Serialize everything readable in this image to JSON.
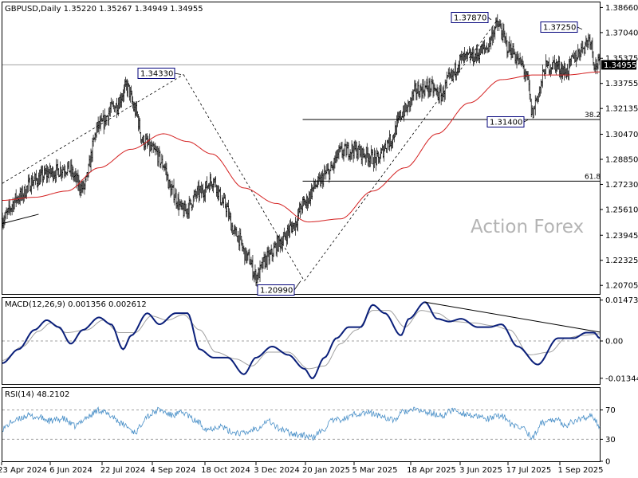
{
  "header": {
    "price_title": "GBPUSD,Daily  1.35220 1.35267 1.34949 1.34955",
    "macd_title": "MACD(12,26,9) 0.001356 0.002612",
    "rsi_title": "RSI(14) 48.2102"
  },
  "watermark": "Action Forex",
  "colors": {
    "price": "#000000",
    "ma": "#d42020",
    "macd": "#0a1f7a",
    "signal": "#a0a0a0",
    "rsi": "#4a90c8",
    "label_border": "#00007a"
  },
  "chart_data": [
    {
      "type": "line",
      "name": "GBPUSD price",
      "ylim": [
        1.2015,
        1.3899
      ],
      "yticks": [
        "1.38660",
        "1.37040",
        "1.35375",
        "1.33755",
        "1.32135",
        "1.30470",
        "1.28850",
        "1.27230",
        "1.25610",
        "1.23945",
        "1.22325",
        "1.20705"
      ],
      "current_price": "1.34955",
      "x_labels": [
        "23 Apr 2024",
        "6 Jun 2024",
        "22 Jul 2024",
        "4 Sep 2024",
        "18 Oct 2024",
        "3 Dec 2024",
        "20 Jan 2025",
        "5 Mar 2025",
        "18 Apr 2025",
        "3 Jun 2025",
        "17 Jul 2025",
        "1 Sep 2025"
      ],
      "close_anchors": [
        [
          0,
          1.25
        ],
        [
          20,
          1.264
        ],
        [
          40,
          1.275
        ],
        [
          60,
          1.28
        ],
        [
          80,
          1.283
        ],
        [
          100,
          1.27
        ],
        [
          120,
          1.31
        ],
        [
          140,
          1.323
        ],
        [
          155,
          1.335
        ],
        [
          165,
          1.32
        ],
        [
          175,
          1.3
        ],
        [
          190,
          1.293
        ],
        [
          200,
          1.285
        ],
        [
          210,
          1.268
        ],
        [
          225,
          1.255
        ],
        [
          245,
          1.267
        ],
        [
          262,
          1.275
        ],
        [
          275,
          1.26
        ],
        [
          290,
          1.24
        ],
        [
          305,
          1.225
        ],
        [
          315,
          1.213
        ],
        [
          330,
          1.225
        ],
        [
          345,
          1.235
        ],
        [
          360,
          1.245
        ],
        [
          375,
          1.26
        ],
        [
          390,
          1.272
        ],
        [
          405,
          1.28
        ],
        [
          420,
          1.293
        ],
        [
          435,
          1.295
        ],
        [
          450,
          1.292
        ],
        [
          465,
          1.288
        ],
        [
          480,
          1.3
        ],
        [
          500,
          1.32
        ],
        [
          515,
          1.333
        ],
        [
          530,
          1.335
        ],
        [
          545,
          1.33
        ],
        [
          555,
          1.34
        ],
        [
          570,
          1.353
        ],
        [
          585,
          1.355
        ],
        [
          600,
          1.36
        ],
        [
          615,
          1.375
        ],
        [
          630,
          1.36
        ],
        [
          645,
          1.35
        ],
        [
          652,
          1.34
        ],
        [
          658,
          1.318
        ],
        [
          665,
          1.33
        ],
        [
          675,
          1.348
        ],
        [
          685,
          1.35
        ],
        [
          700,
          1.345
        ],
        [
          712,
          1.355
        ],
        [
          722,
          1.362
        ],
        [
          730,
          1.367
        ],
        [
          736,
          1.35
        ],
        [
          742,
          1.35
        ]
      ],
      "ma_anchors": [
        [
          0,
          1.262
        ],
        [
          40,
          1.264
        ],
        [
          80,
          1.268
        ],
        [
          120,
          1.283
        ],
        [
          160,
          1.295
        ],
        [
          200,
          1.305
        ],
        [
          230,
          1.3
        ],
        [
          260,
          1.292
        ],
        [
          300,
          1.27
        ],
        [
          340,
          1.26
        ],
        [
          380,
          1.248
        ],
        [
          420,
          1.25
        ],
        [
          460,
          1.268
        ],
        [
          500,
          1.283
        ],
        [
          540,
          1.305
        ],
        [
          580,
          1.325
        ],
        [
          620,
          1.34
        ],
        [
          660,
          1.343
        ],
        [
          700,
          1.343
        ],
        [
          742,
          1.345
        ]
      ],
      "annotations": [
        "1.34330",
        "1.20990",
        "1.37870",
        "1.37250",
        "1.31400"
      ],
      "fib_levels": [
        "38.2",
        "61.8"
      ]
    },
    {
      "type": "line",
      "name": "MACD(12,26,9)",
      "ylim": [
        -0.0155,
        0.0155
      ],
      "yticks": [
        "0.014734",
        "0.00",
        "-0.013442"
      ],
      "macd_anchors": [
        [
          0,
          -0.008
        ],
        [
          20,
          -0.003
        ],
        [
          40,
          0.004
        ],
        [
          55,
          0.0075
        ],
        [
          70,
          0.005
        ],
        [
          85,
          -0.001
        ],
        [
          100,
          0.004
        ],
        [
          120,
          0.0085
        ],
        [
          135,
          0.006
        ],
        [
          150,
          -0.003
        ],
        [
          160,
          0.002
        ],
        [
          180,
          0.01
        ],
        [
          195,
          0.006
        ],
        [
          215,
          0.01
        ],
        [
          230,
          0.01
        ],
        [
          245,
          -0.003
        ],
        [
          262,
          -0.006
        ],
        [
          280,
          -0.006
        ],
        [
          300,
          -0.012
        ],
        [
          315,
          -0.006
        ],
        [
          335,
          -0.002
        ],
        [
          355,
          -0.005
        ],
        [
          375,
          -0.01
        ],
        [
          385,
          -0.0135
        ],
        [
          400,
          -0.006
        ],
        [
          415,
          0.001
        ],
        [
          430,
          0.005
        ],
        [
          445,
          0.005
        ],
        [
          460,
          0.013
        ],
        [
          475,
          0.01
        ],
        [
          495,
          0.002
        ],
        [
          505,
          0.008
        ],
        [
          525,
          0.014
        ],
        [
          540,
          0.008
        ],
        [
          555,
          0.007
        ],
        [
          570,
          0.008
        ],
        [
          590,
          0.005
        ],
        [
          605,
          0.005
        ],
        [
          620,
          0.006
        ],
        [
          640,
          -0.002
        ],
        [
          665,
          -0.0085
        ],
        [
          690,
          0.001
        ],
        [
          710,
          0.001
        ],
        [
          725,
          0.003
        ],
        [
          735,
          0.003
        ],
        [
          742,
          0.001
        ]
      ],
      "signal_anchors": [
        [
          0,
          -0.007
        ],
        [
          25,
          -0.002
        ],
        [
          45,
          0.0035
        ],
        [
          60,
          0.0065
        ],
        [
          80,
          0.003
        ],
        [
          105,
          0.004
        ],
        [
          125,
          0.0075
        ],
        [
          145,
          0.003
        ],
        [
          165,
          0.003
        ],
        [
          185,
          0.009
        ],
        [
          205,
          0.0075
        ],
        [
          225,
          0.0095
        ],
        [
          245,
          0.004
        ],
        [
          265,
          -0.004
        ],
        [
          290,
          -0.0065
        ],
        [
          310,
          -0.009
        ],
        [
          330,
          -0.004
        ],
        [
          355,
          -0.004
        ],
        [
          380,
          -0.01
        ],
        [
          400,
          -0.009
        ],
        [
          420,
          -0.001
        ],
        [
          440,
          0.004
        ],
        [
          460,
          0.011
        ],
        [
          480,
          0.011
        ],
        [
          500,
          0.005
        ],
        [
          520,
          0.011
        ],
        [
          540,
          0.01
        ],
        [
          560,
          0.007
        ],
        [
          585,
          0.0065
        ],
        [
          610,
          0.0055
        ],
        [
          630,
          0.004
        ],
        [
          655,
          -0.005
        ],
        [
          680,
          -0.004
        ],
        [
          700,
          0.001
        ],
        [
          720,
          0.002
        ],
        [
          742,
          0.0026
        ]
      ]
    },
    {
      "type": "line",
      "name": "RSI(14)",
      "ylim": [
        0,
        100
      ],
      "yticks": [
        "70",
        "30",
        "0"
      ],
      "levels": [
        70,
        30
      ],
      "rsi_anchors": [
        [
          0,
          45
        ],
        [
          15,
          55
        ],
        [
          30,
          62
        ],
        [
          45,
          60
        ],
        [
          60,
          55
        ],
        [
          75,
          58
        ],
        [
          90,
          48
        ],
        [
          105,
          60
        ],
        [
          120,
          70
        ],
        [
          135,
          62
        ],
        [
          150,
          50
        ],
        [
          165,
          40
        ],
        [
          180,
          62
        ],
        [
          195,
          70
        ],
        [
          210,
          63
        ],
        [
          225,
          66
        ],
        [
          240,
          55
        ],
        [
          255,
          44
        ],
        [
          270,
          48
        ],
        [
          285,
          40
        ],
        [
          300,
          38
        ],
        [
          315,
          45
        ],
        [
          330,
          55
        ],
        [
          345,
          44
        ],
        [
          360,
          38
        ],
        [
          375,
          35
        ],
        [
          385,
          32
        ],
        [
          395,
          40
        ],
        [
          410,
          55
        ],
        [
          425,
          58
        ],
        [
          440,
          65
        ],
        [
          455,
          66
        ],
        [
          470,
          62
        ],
        [
          485,
          56
        ],
        [
          500,
          68
        ],
        [
          515,
          70
        ],
        [
          530,
          66
        ],
        [
          545,
          62
        ],
        [
          560,
          70
        ],
        [
          575,
          65
        ],
        [
          590,
          60
        ],
        [
          605,
          58
        ],
        [
          620,
          63
        ],
        [
          635,
          48
        ],
        [
          648,
          45
        ],
        [
          658,
          32
        ],
        [
          670,
          52
        ],
        [
          685,
          58
        ],
        [
          700,
          50
        ],
        [
          712,
          55
        ],
        [
          722,
          60
        ],
        [
          730,
          62
        ],
        [
          736,
          55
        ],
        [
          742,
          48
        ]
      ]
    }
  ]
}
